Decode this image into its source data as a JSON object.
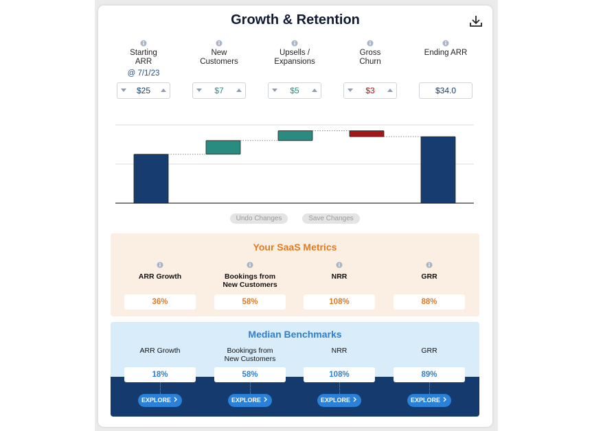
{
  "header": {
    "title": "Growth & Retention"
  },
  "chart_data": {
    "type": "waterfall",
    "categories": [
      "Starting ARR",
      "New Customers",
      "Upsells / Expansions",
      "Gross Churn",
      "Ending ARR"
    ],
    "start_note": "@ 7/1/23",
    "measures": [
      "absolute",
      "increase",
      "increase",
      "decrease",
      "total"
    ],
    "values": [
      25,
      7,
      5,
      3,
      34
    ],
    "value_labels": [
      "$25",
      "$7",
      "$5",
      "$3",
      "$34.0"
    ],
    "colors": {
      "absolute": "#163c70",
      "increase": "#2a8c80",
      "decrease": "#a51616",
      "total": "#163c70"
    },
    "ylim": [
      0,
      40
    ],
    "yticks": [
      0,
      20,
      40
    ],
    "grid": true
  },
  "buttons": [
    "Undo Changes",
    "Save Changes"
  ],
  "metrics": {
    "title": "Your SaaS Metrics",
    "items": [
      {
        "label": "ARR Growth",
        "value": "36%"
      },
      {
        "label": "Bookings from New Customers",
        "value": "58%"
      },
      {
        "label": "NRR",
        "value": "108%"
      },
      {
        "label": "GRR",
        "value": "88%"
      }
    ]
  },
  "benchmarks": {
    "title": "Median Benchmarks",
    "action": "EXPLORE",
    "items": [
      {
        "label": "ARR Growth",
        "value": "18%"
      },
      {
        "label": "Bookings from New Customers",
        "value": "58%"
      },
      {
        "label": "NRR",
        "value": "108%"
      },
      {
        "label": "GRR",
        "value": "89%"
      }
    ]
  }
}
